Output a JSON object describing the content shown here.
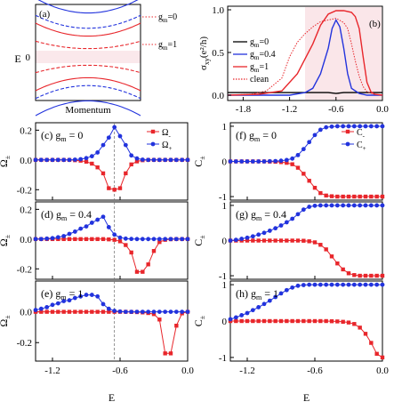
{
  "figure": "multi-panel physics figure",
  "colors": {
    "minus": "#e8262b",
    "plus": "#2233dd",
    "gm0": "#000000",
    "gm04": "#2233dd",
    "gm1": "#e8262b",
    "clean": "#e8262b",
    "shade": "#f7d9dd"
  },
  "chart_data": [
    {
      "id": "a",
      "type": "line",
      "panel_label": "(a)",
      "xlabel": "Momentum",
      "ylabel": "E",
      "ytick": "0",
      "legend": [
        {
          "name": "g_m=0",
          "style": "dotted",
          "color": "#e8262b"
        },
        {
          "name": "g_m=1",
          "style": "dotted",
          "color": "#e8262b"
        }
      ],
      "series": [
        {
          "name": "g_m=0",
          "color": "#2233dd",
          "style": "solid",
          "band": "outer",
          "gap": 0.95,
          "curv": 0.32
        },
        {
          "name": "g_m=0",
          "color": "#2233dd",
          "style": "dashed",
          "band": "inner",
          "gap": 0.62,
          "curv": 0.28
        },
        {
          "name": "g_m=1",
          "color": "#e8262b",
          "style": "solid",
          "band": "outer",
          "gap": 0.45,
          "curv": 0.28
        },
        {
          "name": "g_m=1",
          "color": "#e8262b",
          "style": "dashed",
          "band": "inner",
          "gap": 0.18,
          "curv": 0.16
        }
      ]
    },
    {
      "id": "b",
      "type": "line",
      "panel_label": "(b)",
      "xlabel": "",
      "ylabel": "σxy(e²/h)",
      "xlim": [
        -2.0,
        0.0
      ],
      "ylim": [
        0.0,
        1.0
      ],
      "xticks": [
        "-1.8",
        "-1.2",
        "-0.6",
        "0.0"
      ],
      "yticks": [
        "0.0",
        "0.5",
        "1.0"
      ],
      "shaded_region": [
        -1.0,
        0.0
      ],
      "series": [
        {
          "name": "g_m=0",
          "color": "#000000",
          "style": "solid",
          "x": [
            -2.0,
            -1.8,
            -1.6,
            -1.4,
            -1.2,
            -1.0,
            -0.8,
            -0.7,
            -0.6,
            -0.5,
            -0.4,
            -0.3,
            -0.2,
            -0.1,
            0.0
          ],
          "y": [
            0.03,
            0.03,
            0.03,
            0.03,
            0.03,
            0.03,
            0.03,
            0.03,
            0.02,
            0.03,
            0.03,
            0.03,
            0.03,
            0.03,
            0.03
          ]
        },
        {
          "name": "g_m=0.4",
          "color": "#2233dd",
          "style": "solid",
          "x": [
            -2.0,
            -1.2,
            -1.0,
            -0.9,
            -0.8,
            -0.7,
            -0.65,
            -0.6,
            -0.55,
            -0.5,
            -0.45,
            -0.4,
            -0.3,
            -0.2,
            0.0
          ],
          "y": [
            0.0,
            0.0,
            0.03,
            0.08,
            0.25,
            0.55,
            0.78,
            0.88,
            0.8,
            0.55,
            0.25,
            0.08,
            0.02,
            0.0,
            0.0
          ]
        },
        {
          "name": "g_m=1",
          "color": "#e8262b",
          "style": "solid",
          "x": [
            -2.0,
            -1.6,
            -1.3,
            -1.1,
            -0.9,
            -0.8,
            -0.7,
            -0.6,
            -0.5,
            -0.4,
            -0.35,
            -0.3,
            -0.25,
            -0.2,
            -0.15,
            -0.1,
            0.0
          ],
          "y": [
            0.0,
            0.01,
            0.05,
            0.25,
            0.6,
            0.82,
            0.95,
            0.99,
            0.99,
            0.97,
            0.92,
            0.78,
            0.45,
            0.15,
            0.04,
            0.01,
            0.0
          ]
        },
        {
          "name": "clean",
          "color": "#e8262b",
          "style": "dotted",
          "x": [
            -2.0,
            -1.7,
            -1.5,
            -1.3,
            -1.2,
            -1.1,
            -1.0,
            -0.9,
            -0.8,
            -0.7,
            -0.6,
            -0.5,
            -0.45,
            -0.4,
            -0.35,
            -0.3,
            -0.25,
            -0.2,
            -0.1,
            0.0
          ],
          "y": [
            0.0,
            0.01,
            0.05,
            0.2,
            0.45,
            0.62,
            0.72,
            0.8,
            0.86,
            0.88,
            0.9,
            0.85,
            0.78,
            0.6,
            0.4,
            0.22,
            0.1,
            0.04,
            0.01,
            0.0
          ]
        }
      ],
      "legend": [
        "g_m=0",
        "g_m=0.4",
        "g_m=1",
        "clean"
      ]
    },
    {
      "id": "c",
      "type": "line",
      "panel_label": "(c) g_m = 0",
      "ylabel": "Ω±",
      "xlim": [
        -1.35,
        0.0
      ],
      "ylim": [
        -0.27,
        0.25
      ],
      "yticks": [
        "0.2",
        "0.0",
        "-0.2"
      ],
      "legend": [
        "Ω₋",
        "Ω₊"
      ],
      "vline": -0.65,
      "x": [
        -1.35,
        -1.3,
        -1.25,
        -1.2,
        -1.15,
        -1.1,
        -1.05,
        -1.0,
        -0.95,
        -0.9,
        -0.85,
        -0.8,
        -0.75,
        -0.7,
        -0.65,
        -0.6,
        -0.55,
        -0.5,
        -0.45,
        -0.4,
        -0.35,
        -0.3,
        -0.25,
        -0.2,
        -0.15,
        -0.1,
        -0.05,
        0.0
      ],
      "series": [
        {
          "name": "Ω₋",
          "color": "#e8262b",
          "y": [
            0,
            0,
            0,
            0,
            0,
            0,
            0,
            -0.002,
            -0.005,
            -0.012,
            -0.025,
            -0.05,
            -0.09,
            -0.19,
            -0.2,
            -0.19,
            -0.09,
            -0.03,
            -0.01,
            -0.002,
            0,
            0,
            0,
            0,
            0,
            0,
            0,
            0
          ]
        },
        {
          "name": "Ω₊",
          "color": "#2233dd",
          "y": [
            0,
            0,
            0,
            0,
            0,
            0,
            0,
            0.002,
            0.005,
            0.012,
            0.025,
            0.05,
            0.1,
            0.15,
            0.22,
            0.16,
            0.1,
            0.03,
            0.01,
            0.002,
            0,
            0,
            0,
            0,
            0,
            0,
            0,
            0
          ]
        }
      ]
    },
    {
      "id": "d",
      "type": "line",
      "panel_label": "(d) g_m = 0.4",
      "ylabel": "Ω±",
      "xlim": [
        -1.35,
        0.0
      ],
      "ylim": [
        -0.27,
        0.25
      ],
      "yticks": [
        "0.2",
        "0.0",
        "-0.2"
      ],
      "vline": -0.65,
      "x": [
        -1.35,
        -1.3,
        -1.25,
        -1.2,
        -1.15,
        -1.1,
        -1.05,
        -1.0,
        -0.95,
        -0.9,
        -0.85,
        -0.8,
        -0.75,
        -0.7,
        -0.65,
        -0.6,
        -0.55,
        -0.5,
        -0.45,
        -0.4,
        -0.35,
        -0.3,
        -0.25,
        -0.2,
        -0.15,
        -0.1,
        -0.05,
        0.0
      ],
      "series": [
        {
          "name": "Ω₋",
          "color": "#e8262b",
          "y": [
            0,
            0,
            0,
            0,
            0,
            0,
            0,
            0,
            0,
            0,
            0,
            0,
            0,
            -0.002,
            -0.005,
            -0.015,
            -0.04,
            -0.09,
            -0.22,
            -0.22,
            -0.17,
            -0.08,
            -0.02,
            -0.005,
            -0.001,
            0,
            0,
            0
          ]
        },
        {
          "name": "Ω₊",
          "color": "#2233dd",
          "y": [
            0,
            0,
            0.003,
            0.006,
            0.012,
            0.02,
            0.035,
            0.05,
            0.07,
            0.085,
            0.11,
            0.13,
            0.15,
            0.08,
            0.03,
            0.01,
            0.003,
            0.001,
            0,
            0,
            0,
            0,
            0,
            0,
            0,
            0,
            0,
            0
          ]
        }
      ]
    },
    {
      "id": "e",
      "type": "line",
      "panel_label": "(e) g_m = 1",
      "ylabel": "Ω±",
      "xlim": [
        -1.35,
        0.0
      ],
      "ylim": [
        -0.32,
        0.2
      ],
      "yticks": [
        "0.0",
        "-0.2"
      ],
      "ytick_top": "",
      "vline": -0.65,
      "x": [
        -1.35,
        -1.3,
        -1.25,
        -1.2,
        -1.15,
        -1.1,
        -1.05,
        -1.0,
        -0.95,
        -0.9,
        -0.85,
        -0.8,
        -0.75,
        -0.7,
        -0.65,
        -0.6,
        -0.55,
        -0.5,
        -0.45,
        -0.4,
        -0.35,
        -0.3,
        -0.25,
        -0.2,
        -0.15,
        -0.1,
        -0.05,
        0.0
      ],
      "series": [
        {
          "name": "Ω₋",
          "color": "#e8262b",
          "y": [
            0,
            0,
            0,
            0,
            0,
            0,
            0,
            0,
            0,
            0,
            0,
            0,
            0,
            0,
            0,
            0,
            0,
            -0.001,
            -0.002,
            -0.004,
            -0.008,
            -0.015,
            -0.05,
            -0.27,
            -0.27,
            -0.09,
            -0.01,
            0
          ]
        },
        {
          "name": "Ω₊",
          "color": "#2233dd",
          "y": [
            0.012,
            0.02,
            0.03,
            0.045,
            0.055,
            0.07,
            0.075,
            0.09,
            0.1,
            0.11,
            0.11,
            0.1,
            0.05,
            0.02,
            0.006,
            0.002,
            0,
            0,
            0,
            0,
            0,
            0,
            0,
            0,
            0,
            0,
            0,
            0
          ]
        }
      ]
    },
    {
      "id": "f",
      "type": "line",
      "panel_label": "(f) g_m = 0",
      "ylabel": "C±",
      "xlim": [
        -1.35,
        0.0
      ],
      "ylim": [
        -1.1,
        1.1
      ],
      "yticks": [
        "1",
        "0",
        "-1"
      ],
      "legend": [
        "C₋",
        "C₊"
      ],
      "x": [
        -1.35,
        -1.3,
        -1.25,
        -1.2,
        -1.15,
        -1.1,
        -1.05,
        -1.0,
        -0.95,
        -0.9,
        -0.85,
        -0.8,
        -0.75,
        -0.7,
        -0.65,
        -0.6,
        -0.55,
        -0.5,
        -0.45,
        -0.4,
        -0.35,
        -0.3,
        -0.25,
        -0.2,
        -0.15,
        -0.1,
        -0.05,
        0.0
      ],
      "series": [
        {
          "name": "C₋",
          "color": "#e8262b",
          "y": [
            0,
            0,
            0,
            0,
            0,
            0,
            0,
            -0.005,
            -0.01,
            -0.02,
            -0.04,
            -0.08,
            -0.18,
            -0.35,
            -0.55,
            -0.75,
            -0.9,
            -0.97,
            -0.99,
            -1,
            -1,
            -1,
            -1,
            -1,
            -1,
            -1,
            -1,
            -1
          ]
        },
        {
          "name": "C₊",
          "color": "#2233dd",
          "y": [
            0,
            0,
            0,
            0,
            0,
            0,
            0,
            0.005,
            0.01,
            0.02,
            0.04,
            0.08,
            0.18,
            0.35,
            0.55,
            0.75,
            0.9,
            0.97,
            0.99,
            1,
            1,
            1,
            1,
            1,
            1,
            1,
            1,
            1
          ]
        }
      ]
    },
    {
      "id": "g",
      "type": "line",
      "panel_label": "(g) g_m = 0.4",
      "ylabel": "C±",
      "xlim": [
        -1.35,
        0.0
      ],
      "ylim": [
        -1.1,
        1.1
      ],
      "yticks": [
        "1",
        "0",
        "-1"
      ],
      "x": [
        -1.35,
        -1.3,
        -1.25,
        -1.2,
        -1.15,
        -1.1,
        -1.05,
        -1.0,
        -0.95,
        -0.9,
        -0.85,
        -0.8,
        -0.75,
        -0.7,
        -0.65,
        -0.6,
        -0.55,
        -0.5,
        -0.45,
        -0.4,
        -0.35,
        -0.3,
        -0.25,
        -0.2,
        -0.15,
        -0.1,
        -0.05,
        0.0
      ],
      "series": [
        {
          "name": "C₋",
          "color": "#e8262b",
          "y": [
            0,
            0,
            0,
            0,
            0,
            0,
            0,
            0,
            0,
            0,
            0,
            0,
            0,
            -0.005,
            -0.02,
            -0.05,
            -0.12,
            -0.25,
            -0.45,
            -0.65,
            -0.82,
            -0.93,
            -0.98,
            -1,
            -1,
            -1,
            -1,
            -1
          ]
        },
        {
          "name": "C₊",
          "color": "#2233dd",
          "y": [
            0,
            0.02,
            0.05,
            0.08,
            0.12,
            0.17,
            0.22,
            0.28,
            0.35,
            0.43,
            0.52,
            0.62,
            0.75,
            0.88,
            0.96,
            0.99,
            1,
            1,
            1,
            1,
            1,
            1,
            1,
            1,
            1,
            1,
            1,
            1
          ]
        }
      ]
    },
    {
      "id": "h",
      "type": "line",
      "panel_label": "(h) g_m = 1",
      "ylabel": "C±",
      "xlabel": "E",
      "xlim": [
        -1.35,
        0.0
      ],
      "ylim": [
        -1.1,
        1.1
      ],
      "yticks": [
        "1",
        "0",
        "-1"
      ],
      "xticks": [
        "-1.2",
        "-0.6",
        "0.0"
      ],
      "x": [
        -1.35,
        -1.3,
        -1.25,
        -1.2,
        -1.15,
        -1.1,
        -1.05,
        -1.0,
        -0.95,
        -0.9,
        -0.85,
        -0.8,
        -0.75,
        -0.7,
        -0.65,
        -0.6,
        -0.55,
        -0.5,
        -0.45,
        -0.4,
        -0.35,
        -0.3,
        -0.25,
        -0.2,
        -0.15,
        -0.1,
        -0.05,
        0.0
      ],
      "series": [
        {
          "name": "C₋",
          "color": "#e8262b",
          "y": [
            0,
            0,
            0,
            0,
            0,
            0,
            0,
            0,
            0,
            0,
            0,
            0,
            0,
            0,
            0,
            0,
            0,
            0,
            -0.005,
            -0.01,
            -0.02,
            -0.04,
            -0.08,
            -0.18,
            -0.35,
            -0.6,
            -0.9,
            -1
          ]
        },
        {
          "name": "C₊",
          "color": "#2233dd",
          "y": [
            0.05,
            0.1,
            0.16,
            0.22,
            0.3,
            0.38,
            0.47,
            0.56,
            0.66,
            0.76,
            0.85,
            0.92,
            0.97,
            0.99,
            1,
            1,
            1,
            1,
            1,
            1,
            1,
            1,
            1,
            1,
            1,
            1,
            1,
            1
          ]
        }
      ]
    }
  ],
  "labels": {
    "a": {
      "tag": "(a)",
      "ylabel": "E",
      "zero": "0",
      "xlabel": "Momentum",
      "leg0": "g",
      "leg0sub": "m",
      "leg0val": "=0",
      "leg1": "g",
      "leg1sub": "m",
      "leg1val": "=1"
    },
    "b": {
      "tag": "(b)",
      "ylabel": "σ",
      "ysub": "xy",
      "yunit": "(e²/h)",
      "legend": [
        {
          "g": "g",
          "sub": "m",
          "val": "=0"
        },
        {
          "g": "g",
          "sub": "m",
          "val": "=0.4"
        },
        {
          "g": "g",
          "sub": "m",
          "val": "=1"
        },
        {
          "g": "clean",
          "sub": "",
          "val": ""
        }
      ]
    },
    "bottom_xlabel": "E",
    "omega": "Ω",
    "omega_sub": "±",
    "chern": "C",
    "chern_sub": "±",
    "leg_omega": [
      "Ω",
      "Ω"
    ],
    "leg_omega_sub": [
      "-",
      "+"
    ],
    "leg_c": [
      "C",
      "C"
    ],
    "leg_c_sub": [
      "-",
      "+"
    ],
    "panels": {
      "c": {
        "tag": "(c) g",
        "sub": "m",
        "val": " = 0"
      },
      "d": {
        "tag": "(d) g",
        "sub": "m",
        "val": " = 0.4"
      },
      "e": {
        "tag": "(e) g",
        "sub": "m",
        "val": " = 1"
      },
      "f": {
        "tag": "(f) g",
        "sub": "m",
        "val": " = 0"
      },
      "g": {
        "tag": "(g) g",
        "sub": "m",
        "val": " = 0.4"
      },
      "h": {
        "tag": "(h) g",
        "sub": "m",
        "val": " = 1"
      }
    }
  }
}
